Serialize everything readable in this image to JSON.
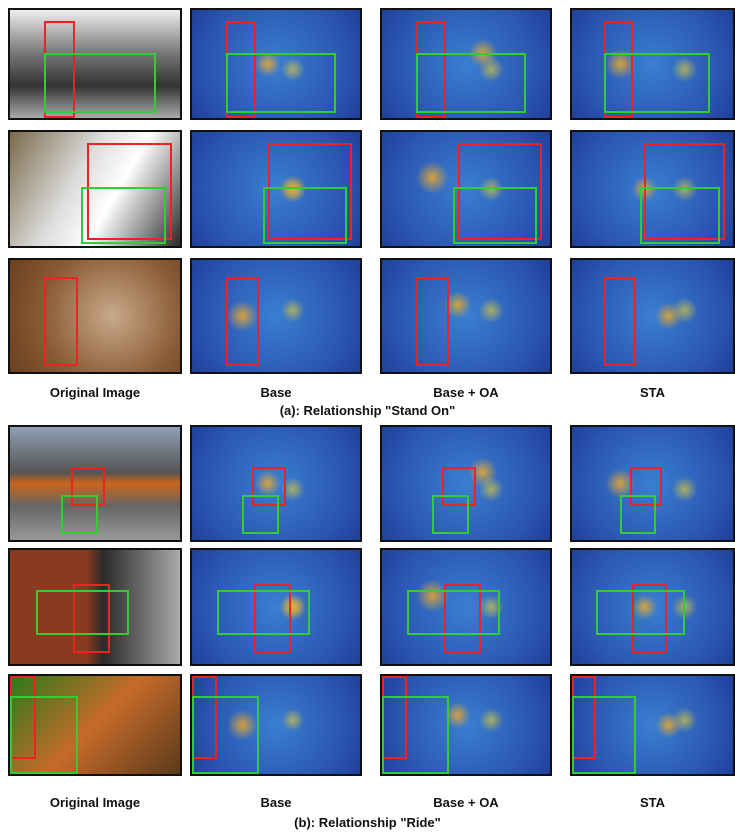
{
  "panels": [
    {
      "columns": [
        "Original Image",
        "Base",
        "Base + OA",
        "STA"
      ],
      "caption": "(a): Relationship \"Stand On\""
    },
    {
      "columns": [
        "Original Image",
        "Base",
        "Base + OA",
        "STA"
      ],
      "caption": "(b): Relationship \"Ride\""
    }
  ]
}
